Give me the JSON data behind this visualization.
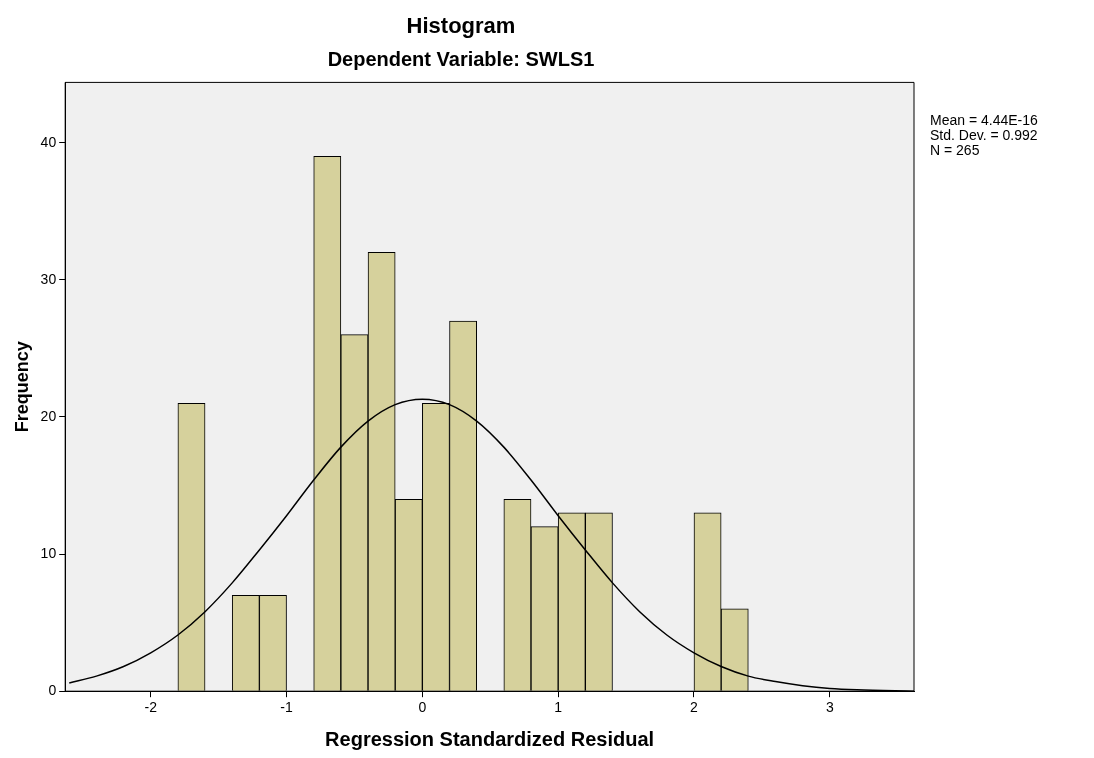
{
  "chart_data": {
    "type": "histogram",
    "title": "Histogram",
    "subtitle": "Dependent Variable: SWLS1",
    "xlabel": "Regression Standardized Residual",
    "ylabel": "Frequency",
    "bins": [
      -1.8,
      -1.6,
      -1.4,
      -1.2,
      -1.0,
      -0.8,
      -0.6,
      -0.4,
      -0.2,
      0,
      0.2,
      0.4,
      0.6,
      0.8,
      1.0,
      1.2,
      1.4,
      2.0,
      2.2,
      2.4
    ],
    "values": [
      21,
      0,
      7,
      7,
      0,
      39,
      26,
      32,
      14,
      21,
      27,
      0,
      14,
      12,
      13,
      13,
      0,
      13,
      6
    ],
    "color": "#d6d19c",
    "series": [
      {
        "type": "line",
        "color": "#000000",
        "x": [
          -2.6,
          -2.4,
          -2.2,
          -2.0,
          -1.8,
          -1.6,
          -1.4,
          -1.2,
          -1.0,
          -0.8,
          -0.6,
          -0.4,
          -0.2,
          0,
          0.2,
          0.4,
          0.6,
          0.8,
          1.0,
          1.2,
          1.4,
          1.6,
          1.8,
          2.0,
          2.2,
          2.4,
          2.6,
          2.8,
          3.0,
          3.2,
          3.62
        ],
        "values": [
          0.6,
          1.1,
          1.8,
          2.8,
          4.1,
          5.8,
          7.9,
          10.3,
          12.8,
          15.4,
          17.8,
          19.7,
          20.9,
          21.3,
          20.9,
          19.7,
          17.8,
          15.4,
          12.8,
          10.3,
          7.9,
          5.8,
          4.1,
          2.8,
          1.8,
          1.1,
          0.7,
          0.4,
          0.2,
          0.1,
          0.0
        ]
      }
    ],
    "xlim": [
      -2.63,
      3.62
    ],
    "xticks": [
      -2,
      -1,
      0,
      1,
      2,
      3
    ],
    "ylim": [
      0,
      44.4
    ],
    "yticks": [
      0,
      10,
      20,
      30,
      40
    ],
    "grid": false,
    "legend": false,
    "marker": "none",
    "annotations": [
      "Mean = 4.44E-16",
      "Std. Dev. = 0.992",
      "N = 265"
    ]
  }
}
